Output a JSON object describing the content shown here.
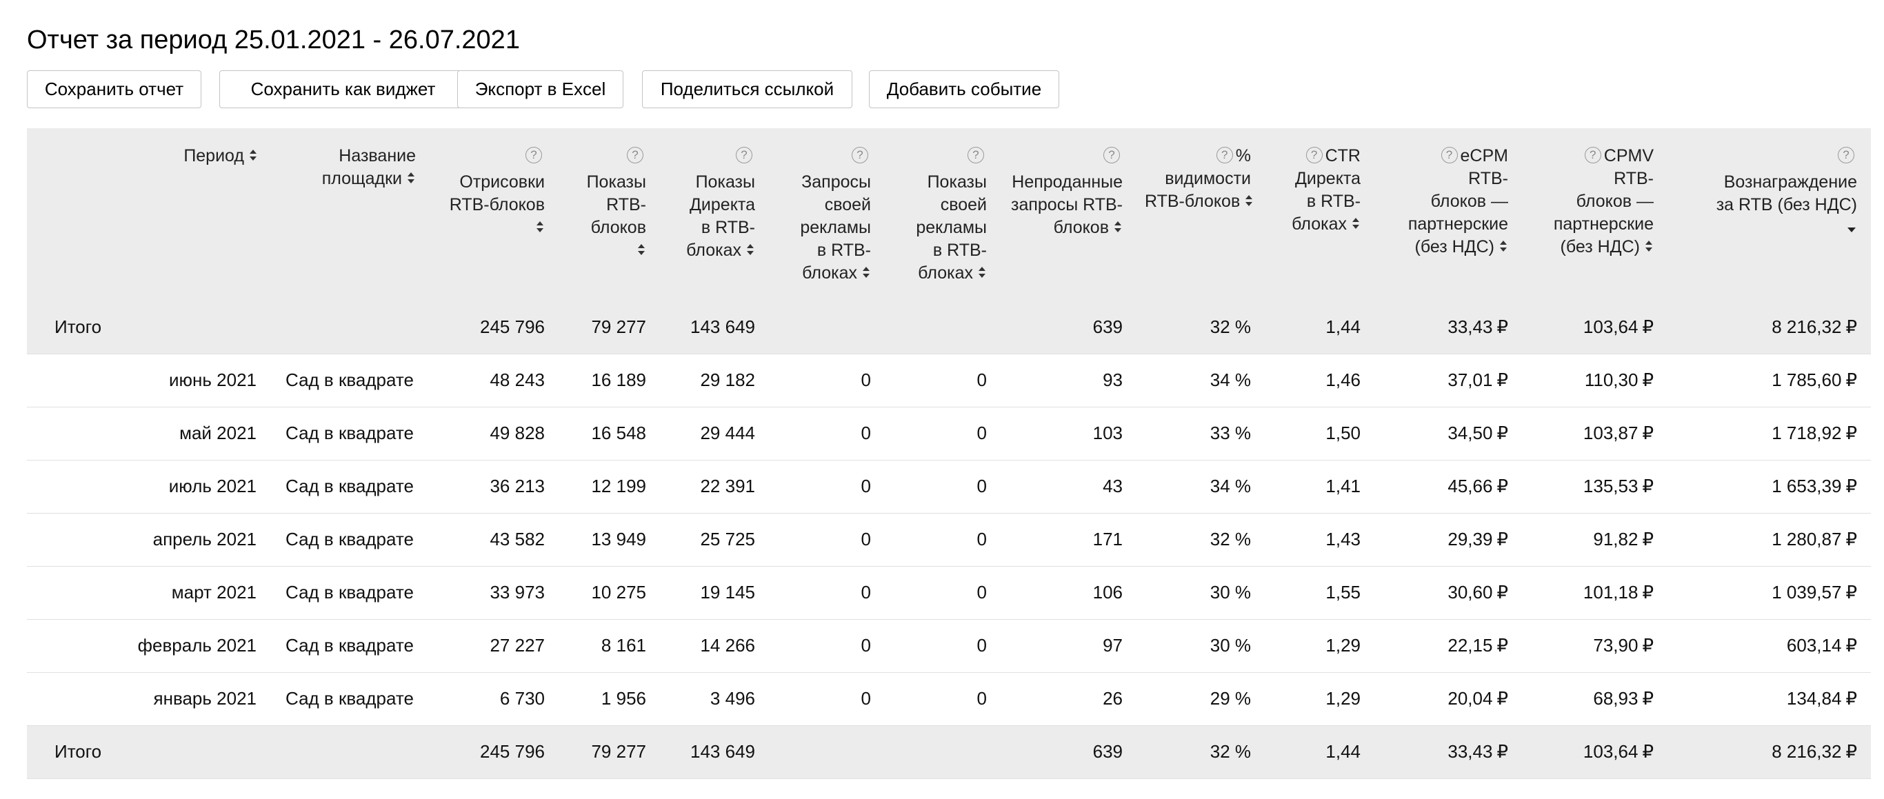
{
  "title": "Отчет за период 25.01.2021 - 26.07.2021",
  "toolbar": {
    "save_report": "Сохранить отчет",
    "save_widget": "Сохранить как виджет",
    "export_excel": "Экспорт в Excel",
    "share_link": "Поделиться ссылкой",
    "add_event": "Добавить событие"
  },
  "columns": {
    "period": [
      "Период"
    ],
    "site": [
      "Название",
      "площадки"
    ],
    "rtb_renders": [
      "Отрисовки",
      "RTB-блоков"
    ],
    "rtb_shows": [
      "Показы",
      "RTB-",
      "блоков"
    ],
    "direct_shows": [
      "Показы",
      "Директа",
      "в RTB-",
      "блоках"
    ],
    "own_requests": [
      "Запросы",
      "своей",
      "рекламы",
      "в RTB-",
      "блоках"
    ],
    "own_shows": [
      "Показы",
      "своей",
      "рекламы",
      "в RTB-",
      "блоках"
    ],
    "unsold": [
      "Непроданные",
      "запросы RTB-",
      "блоков"
    ],
    "visibility": [
      "%",
      "видимости",
      "RTB-блоков"
    ],
    "ctr": [
      "CTR",
      "Директа",
      "в RTB-",
      "блоках"
    ],
    "ecpm": [
      "eCPM",
      "RTB-",
      "блоков —",
      "партнерские",
      "(без НДС)"
    ],
    "cpmv": [
      "CPMV",
      "RTB-",
      "блоков —",
      "партнерские",
      "(без НДС)"
    ],
    "reward": [
      "Вознаграждение",
      "за RTB (без НДС)"
    ]
  },
  "currency": "₽",
  "total_top": {
    "label": "Итого",
    "renders": "245 796",
    "shows": "79 277",
    "direct": "143 649",
    "own_req": "",
    "own_shows": "",
    "unsold": "639",
    "visibility": "32 %",
    "ctr": "1,44",
    "ecpm": "33,43",
    "cpmv": "103,64",
    "reward": "8 216,32"
  },
  "rows": [
    {
      "period": "июнь 2021",
      "site": "Сад в квадрате",
      "renders": "48 243",
      "shows": "16 189",
      "direct": "29 182",
      "own_req": "0",
      "own_shows": "0",
      "unsold": "93",
      "visibility": "34 %",
      "ctr": "1,46",
      "ecpm": "37,01",
      "cpmv": "110,30",
      "reward": "1 785,60"
    },
    {
      "period": "май 2021",
      "site": "Сад в квадрате",
      "renders": "49 828",
      "shows": "16 548",
      "direct": "29 444",
      "own_req": "0",
      "own_shows": "0",
      "unsold": "103",
      "visibility": "33 %",
      "ctr": "1,50",
      "ecpm": "34,50",
      "cpmv": "103,87",
      "reward": "1 718,92"
    },
    {
      "period": "июль 2021",
      "site": "Сад в квадрате",
      "renders": "36 213",
      "shows": "12 199",
      "direct": "22 391",
      "own_req": "0",
      "own_shows": "0",
      "unsold": "43",
      "visibility": "34 %",
      "ctr": "1,41",
      "ecpm": "45,66",
      "cpmv": "135,53",
      "reward": "1 653,39"
    },
    {
      "period": "апрель 2021",
      "site": "Сад в квадрате",
      "renders": "43 582",
      "shows": "13 949",
      "direct": "25 725",
      "own_req": "0",
      "own_shows": "0",
      "unsold": "171",
      "visibility": "32 %",
      "ctr": "1,43",
      "ecpm": "29,39",
      "cpmv": "91,82",
      "reward": "1 280,87"
    },
    {
      "period": "март 2021",
      "site": "Сад в квадрате",
      "renders": "33 973",
      "shows": "10 275",
      "direct": "19 145",
      "own_req": "0",
      "own_shows": "0",
      "unsold": "106",
      "visibility": "30 %",
      "ctr": "1,55",
      "ecpm": "30,60",
      "cpmv": "101,18",
      "reward": "1 039,57"
    },
    {
      "period": "февраль 2021",
      "site": "Сад в квадрате",
      "renders": "27 227",
      "shows": "8 161",
      "direct": "14 266",
      "own_req": "0",
      "own_shows": "0",
      "unsold": "97",
      "visibility": "30 %",
      "ctr": "1,29",
      "ecpm": "22,15",
      "cpmv": "73,90",
      "reward": "603,14"
    },
    {
      "period": "январь 2021",
      "site": "Сад в квадрате",
      "renders": "6 730",
      "shows": "1 956",
      "direct": "3 496",
      "own_req": "0",
      "own_shows": "0",
      "unsold": "26",
      "visibility": "29 %",
      "ctr": "1,29",
      "ecpm": "20,04",
      "cpmv": "68,93",
      "reward": "134,84"
    }
  ],
  "total_bottom": {
    "label": "Итого",
    "renders": "245 796",
    "shows": "79 277",
    "direct": "143 649",
    "own_req": "",
    "own_shows": "",
    "unsold": "639",
    "visibility": "32 %",
    "ctr": "1,44",
    "ecpm": "33,43",
    "cpmv": "103,64",
    "reward": "8 216,32"
  },
  "sorted_column": "reward",
  "sort_direction": "descending"
}
